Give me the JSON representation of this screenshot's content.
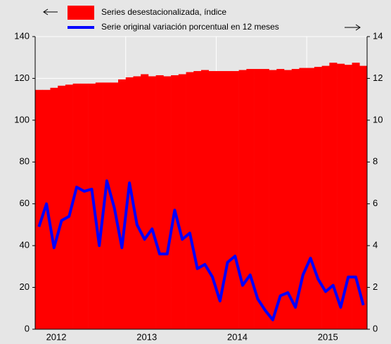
{
  "chart_data": {
    "type": "bar-line",
    "categories": [
      null,
      null,
      "2012",
      null,
      null,
      null,
      null,
      null,
      null,
      null,
      null,
      null,
      null,
      null,
      "2013",
      null,
      null,
      null,
      null,
      null,
      null,
      null,
      null,
      null,
      null,
      null,
      "2014",
      null,
      null,
      null,
      null,
      null,
      null,
      null,
      null,
      null,
      null,
      null,
      "2015",
      null,
      null,
      null,
      null,
      null
    ],
    "series": [
      {
        "name": "Series desestacionalizada, índice",
        "color": "#ff0000",
        "kind": "bar",
        "axis": "y",
        "values": [
          114.5,
          114.5,
          115.5,
          116.5,
          117,
          117.5,
          117.5,
          117.5,
          118,
          118,
          118,
          119.5,
          120.5,
          121,
          122,
          121,
          121.5,
          121,
          121.5,
          122,
          123,
          123.5,
          124,
          123.5,
          123.5,
          123.5,
          123.5,
          124,
          124.5,
          124.5,
          124.5,
          124,
          124.5,
          124,
          124.5,
          125,
          125,
          125.5,
          126,
          127.5,
          127,
          126.5,
          127.5,
          126
        ]
      },
      {
        "name": "Serie original variación porcentual en 12 meses",
        "color": "#0000ff",
        "kind": "line",
        "axis": "y2",
        "values": [
          4.9,
          6.0,
          3.9,
          5.2,
          5.4,
          6.8,
          6.6,
          6.7,
          4.0,
          7.1,
          5.8,
          3.9,
          7.0,
          5.0,
          4.3,
          4.8,
          3.6,
          3.6,
          5.7,
          4.3,
          4.6,
          2.9,
          3.1,
          2.5,
          1.35,
          3.2,
          3.5,
          2.1,
          2.6,
          1.45,
          0.9,
          0.45,
          1.6,
          1.75,
          1.05,
          2.6,
          3.4,
          2.4,
          1.8,
          2.1,
          1.05,
          2.5,
          2.5,
          1.15
        ]
      }
    ],
    "ylim": [
      0,
      140
    ],
    "yticks": [
      0,
      20,
      40,
      60,
      80,
      100,
      120,
      140
    ],
    "y2lim": [
      0,
      14
    ],
    "y2ticks": [
      0,
      2,
      4,
      6,
      8,
      10,
      12,
      14
    ],
    "grid": true
  }
}
